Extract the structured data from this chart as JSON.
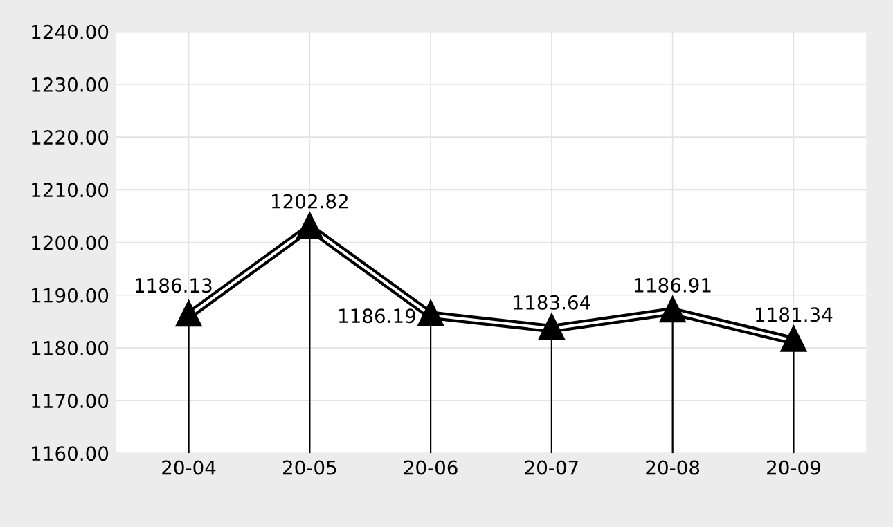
{
  "chart_data": {
    "type": "line",
    "categories": [
      "20-04",
      "20-05",
      "20-06",
      "20-07",
      "20-08",
      "20-09"
    ],
    "series": [
      {
        "color": "#000000",
        "values": [
          1186.13,
          1202.82,
          1186.19,
          1183.64,
          1186.91,
          1181.34
        ]
      }
    ],
    "ylim": [
      1160,
      1240
    ],
    "yticks": [
      {
        "value": 1160,
        "label": "1160.00"
      },
      {
        "value": 1170,
        "label": "1170.00"
      },
      {
        "value": 1180,
        "label": "1180.00"
      },
      {
        "value": 1190,
        "label": "1190.00"
      },
      {
        "value": 1200,
        "label": "1200.00"
      },
      {
        "value": 1210,
        "label": "1210.00"
      },
      {
        "value": 1220,
        "label": "1220.00"
      },
      {
        "value": 1230,
        "label": "1230.00"
      },
      {
        "value": 1240,
        "label": "1240.00"
      }
    ],
    "data_labels": true,
    "marker": "triangle",
    "grid": true
  }
}
